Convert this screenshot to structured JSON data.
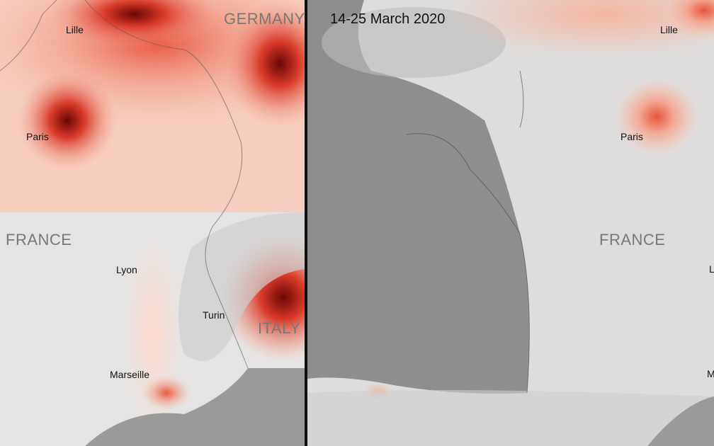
{
  "left_map": {
    "cities": [
      "Lille",
      "Paris",
      "Lyon",
      "Turin",
      "Marseille"
    ],
    "countries": [
      "GERMANY",
      "FRANCE",
      "ITALY"
    ]
  },
  "right_map": {
    "title": "14-25 March 2020",
    "cities": [
      "Lille",
      "Paris",
      "L",
      "M"
    ],
    "countries": [
      "FRANCE"
    ]
  },
  "colors": {
    "no2_high": "#7a0a0a",
    "no2_mid": "#e2482f",
    "no2_low": "#f7c7b8",
    "ocean": "#8e8e8e",
    "land": "#e3e2e1"
  }
}
